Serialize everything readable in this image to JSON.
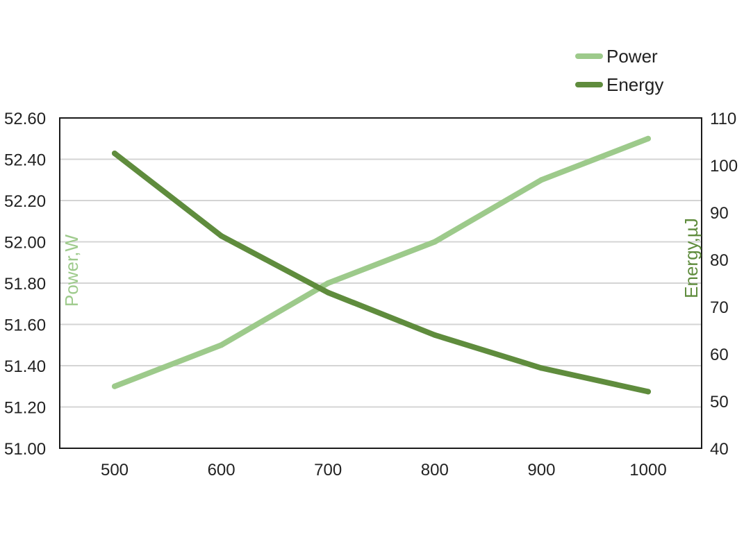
{
  "chart_data": {
    "type": "line",
    "x": [
      500,
      600,
      700,
      800,
      900,
      1000
    ],
    "x_tick_labels": [
      "500",
      "600",
      "700",
      "800",
      "900",
      "1000"
    ],
    "series": [
      {
        "name": "Power",
        "axis": "left",
        "color": "#9dca8b",
        "values": [
          51.3,
          51.5,
          51.8,
          52.0,
          52.3,
          52.5
        ]
      },
      {
        "name": "Energy",
        "axis": "right",
        "color": "#5f8c3d",
        "values": [
          102.5,
          85,
          73,
          64,
          57,
          52
        ]
      }
    ],
    "y_left": {
      "label": "Power,W",
      "color": "#9dca8b",
      "range": [
        51.0,
        52.6
      ],
      "ticks": [
        51.0,
        51.2,
        51.4,
        51.6,
        51.8,
        52.0,
        52.2,
        52.4,
        52.6
      ],
      "tick_labels": [
        "51.00",
        "51.20",
        "51.40",
        "51.60",
        "51.80",
        "52.00",
        "52.20",
        "52.40",
        "52.60"
      ]
    },
    "y_right": {
      "label": "Energy,µJ",
      "color": "#5f8c3d",
      "range": [
        40,
        110
      ],
      "ticks": [
        40,
        50,
        60,
        70,
        80,
        90,
        100,
        110
      ],
      "tick_labels": [
        "40",
        "50",
        "60",
        "70",
        "80",
        "90",
        "100",
        "110"
      ]
    },
    "grid": true,
    "legend_position": "top-right"
  }
}
